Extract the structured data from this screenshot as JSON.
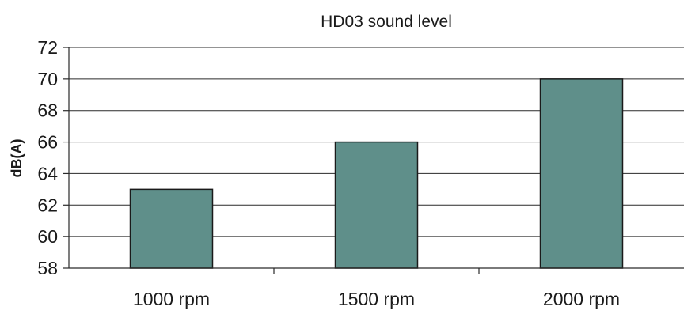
{
  "chart_data": {
    "type": "bar",
    "title": "HD03 sound level",
    "ylabel": "dB(A)",
    "xlabel": "",
    "categories": [
      "1000 rpm",
      "1500 rpm",
      "2000 rpm"
    ],
    "values": [
      63,
      66,
      70
    ],
    "ylim": [
      58,
      72
    ],
    "yticks": [
      58,
      60,
      62,
      64,
      66,
      68,
      70,
      72
    ],
    "grid": true,
    "legend": "none",
    "bar_color": "#5f8f8a",
    "bar_border_color": "#1a1a1a"
  }
}
